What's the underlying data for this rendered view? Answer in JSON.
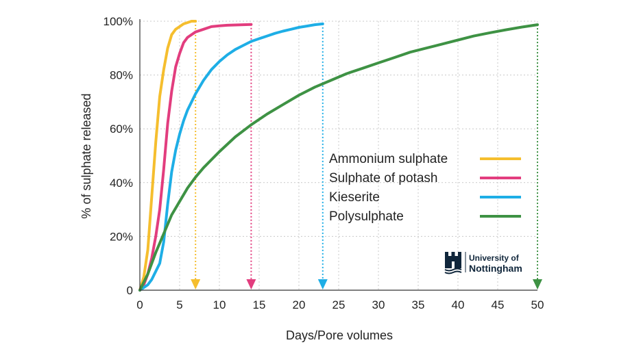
{
  "chart_data": {
    "type": "line",
    "title": "",
    "xlabel": "Days/Pore volumes",
    "ylabel": "% of sulphate released",
    "xlim": [
      0,
      50
    ],
    "ylim": [
      0,
      100
    ],
    "x_ticks": [
      0,
      5,
      10,
      15,
      20,
      25,
      30,
      35,
      40,
      45,
      50
    ],
    "x_tick_labels": [
      "0",
      "5",
      "10",
      "15",
      "20",
      "25",
      "30",
      "35",
      "40",
      "45",
      "50"
    ],
    "y_ticks": [
      0,
      20,
      40,
      60,
      80,
      100
    ],
    "y_tick_labels": [
      "0",
      "20%",
      "40%",
      "60%",
      "80%",
      "100%"
    ],
    "grid": "dotted",
    "legend_position": "right",
    "series": [
      {
        "name": "Ammonium sulphate",
        "color": "#F5BE2E",
        "x": [
          0,
          0.5,
          1,
          1.5,
          2,
          2.5,
          3,
          3.5,
          4,
          4.5,
          5,
          5.5,
          6,
          6.5,
          7
        ],
        "y": [
          0,
          5,
          15,
          35,
          55,
          72,
          82,
          90,
          95,
          97,
          98,
          99,
          99.5,
          100,
          100
        ],
        "end_marker_x": 7
      },
      {
        "name": "Sulphate of potash",
        "color": "#E23D7E",
        "x": [
          0,
          0.5,
          1,
          1.5,
          2,
          2.5,
          3,
          3.5,
          4,
          4.5,
          5,
          5.5,
          6,
          7,
          8,
          9,
          10,
          11,
          12,
          13,
          14
        ],
        "y": [
          0,
          2,
          6,
          12,
          20,
          30,
          45,
          62,
          74,
          83,
          88,
          92,
          94,
          96,
          97,
          98,
          98.3,
          98.5,
          98.6,
          98.7,
          98.8
        ],
        "end_marker_x": 14
      },
      {
        "name": "Kieserite",
        "color": "#1EAEE6",
        "x": [
          0,
          0.5,
          1,
          1.5,
          2,
          2.5,
          3,
          3.5,
          4,
          4.5,
          5,
          5.5,
          6,
          7,
          8,
          9,
          10,
          11,
          12,
          13,
          14,
          15,
          16,
          17,
          18,
          19,
          20,
          21,
          22,
          23
        ],
        "y": [
          0,
          1,
          2,
          4,
          7,
          10,
          18,
          32,
          44,
          52,
          58,
          63,
          67,
          73,
          78,
          82,
          85,
          87.5,
          89.5,
          91,
          92.5,
          93.5,
          94.5,
          95.5,
          96.3,
          97,
          97.7,
          98.2,
          98.7,
          99
        ],
        "end_marker_x": 23
      },
      {
        "name": "Polysulphate",
        "color": "#3E9244",
        "x": [
          0,
          1,
          2,
          3,
          4,
          5,
          6,
          7,
          8,
          9,
          10,
          12,
          14,
          16,
          18,
          20,
          22,
          24,
          26,
          28,
          30,
          32,
          34,
          36,
          38,
          40,
          42,
          44,
          46,
          48,
          50
        ],
        "y": [
          0,
          6,
          14,
          21,
          28,
          33,
          38,
          42,
          45.5,
          48.5,
          51.5,
          57,
          61.5,
          65.5,
          69,
          72.5,
          75.5,
          78,
          80.5,
          82.5,
          84.5,
          86.5,
          88.5,
          90,
          91.5,
          93,
          94.5,
          95.7,
          96.8,
          97.8,
          98.7
        ],
        "end_marker_x": 50
      }
    ]
  },
  "logo": {
    "line1": "University of",
    "line2": "Nottingham",
    "color": "#10263B"
  }
}
